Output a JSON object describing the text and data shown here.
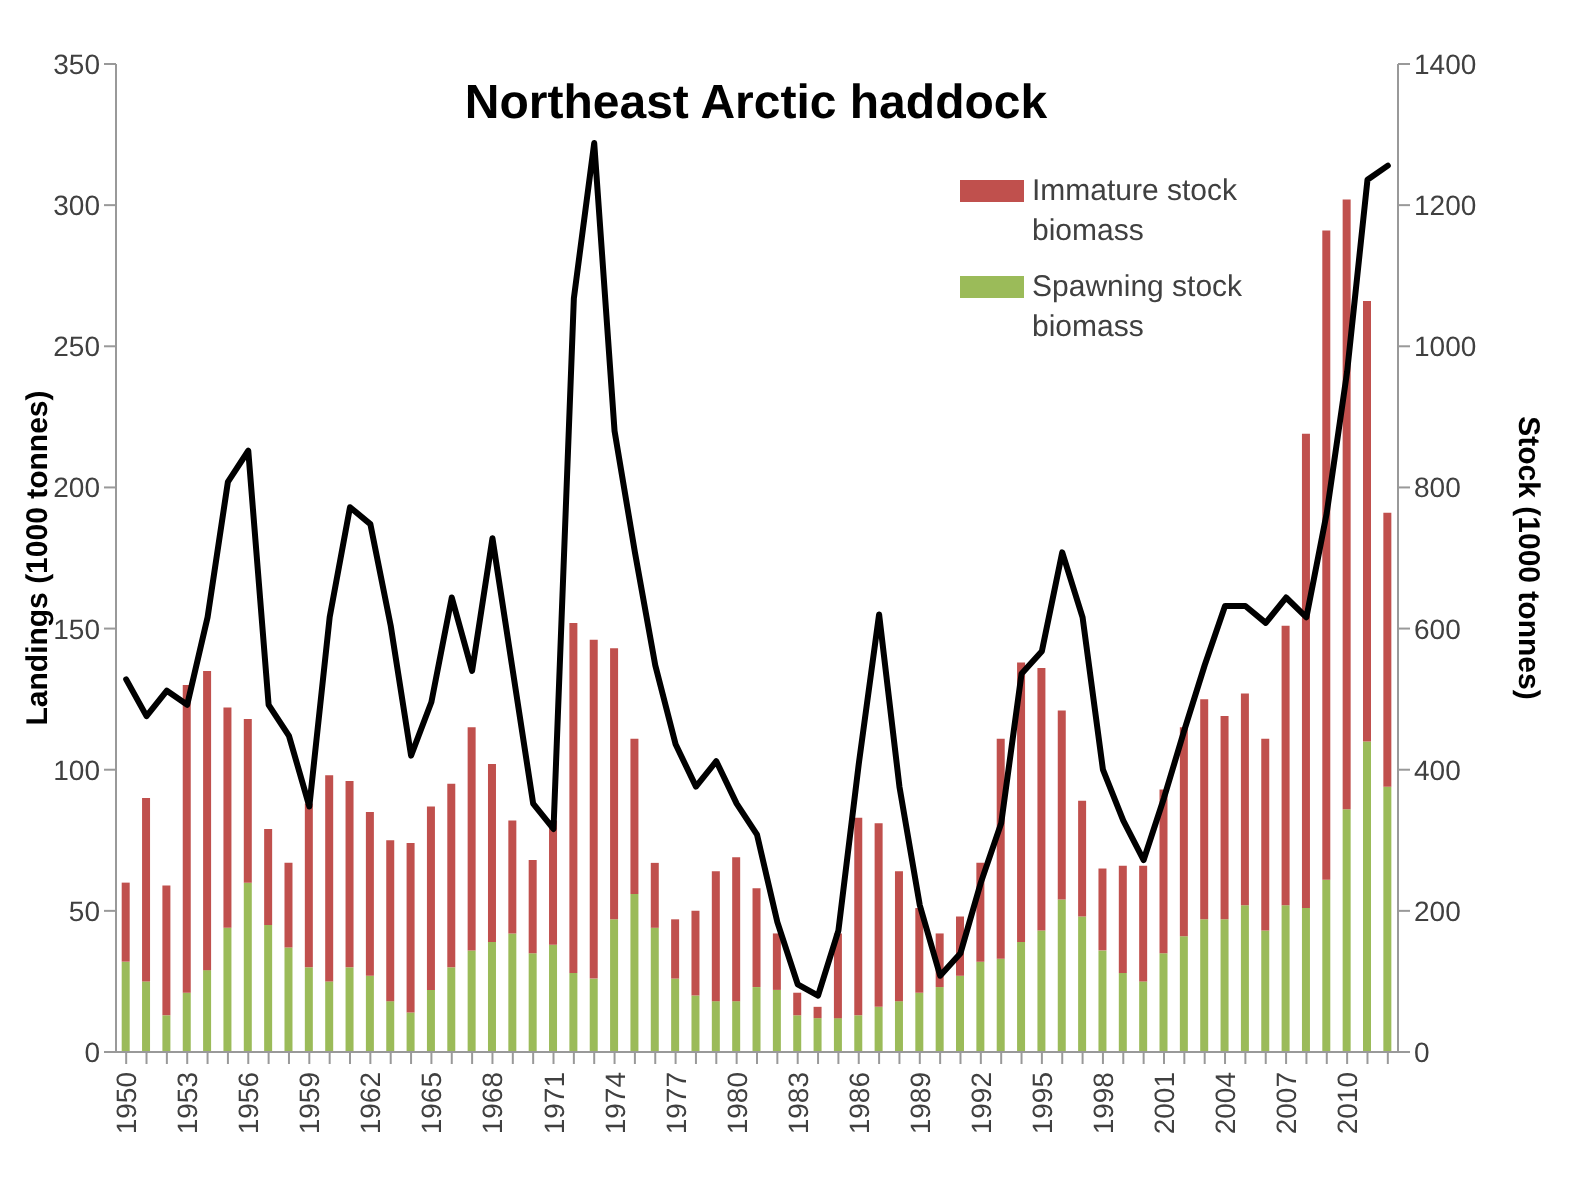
{
  "chart_data": {
    "type": "bar",
    "title": "Northeast Arctic haddock",
    "ylabel": "Landings (1000 tonnes)",
    "y2label": "Stock (1000 tonnes)",
    "categories": [
      "1950",
      null,
      null,
      "1953",
      null,
      null,
      "1956",
      null,
      null,
      "1959",
      null,
      null,
      "1962",
      null,
      null,
      "1965",
      null,
      null,
      "1968",
      null,
      null,
      "1971",
      null,
      null,
      "1974",
      null,
      null,
      "1977",
      null,
      null,
      "1980",
      null,
      null,
      "1983",
      null,
      null,
      "1986",
      null,
      null,
      "1989",
      null,
      null,
      "1992",
      null,
      null,
      "1995",
      null,
      null,
      "1998",
      null,
      null,
      "2001",
      null,
      null,
      "2004",
      null,
      null,
      "2007",
      null,
      null,
      "2010",
      null,
      null
    ],
    "stacked": true,
    "legend": "top right",
    "marker": "none",
    "line_style": "solid",
    "grid": false,
    "ylim": [
      0,
      350
    ],
    "yticks": [
      0,
      50,
      100,
      150,
      200,
      250,
      300,
      350
    ],
    "y2lim": [
      0,
      1400
    ],
    "y2ticks": [
      0,
      200,
      400,
      600,
      800,
      1000,
      1200,
      1400
    ],
    "series": [
      {
        "name": "Spawning stock biomass",
        "axis": "y2",
        "color": "#9bbb59",
        "values": [
          128,
          100,
          52,
          84,
          116,
          176,
          240,
          180,
          148,
          120,
          100,
          120,
          108,
          72,
          56,
          88,
          120,
          144,
          156,
          168,
          140,
          152,
          112,
          104,
          188,
          224,
          176,
          104,
          80,
          72,
          72,
          92,
          88,
          52,
          48,
          48,
          52,
          64,
          72,
          84,
          92,
          108,
          128,
          132,
          156,
          172,
          216,
          192,
          144,
          112,
          100,
          140,
          164,
          188,
          188,
          208,
          172,
          208,
          204,
          244,
          344,
          440,
          376
        ]
      },
      {
        "name": "Immature stock biomass",
        "axis": "y2",
        "color": "#c0504d",
        "values": [
          112,
          260,
          184,
          436,
          424,
          312,
          232,
          136,
          120,
          232,
          292,
          264,
          232,
          228,
          240,
          260,
          260,
          316,
          252,
          160,
          132,
          176,
          496,
          480,
          384,
          220,
          92,
          84,
          120,
          184,
          204,
          140,
          80,
          32,
          16,
          120,
          280,
          260,
          184,
          120,
          76,
          84,
          140,
          312,
          396,
          372,
          268,
          164,
          116,
          152,
          164,
          232,
          296,
          312,
          288,
          300,
          272,
          396,
          672,
          920,
          864,
          624,
          388
        ]
      },
      {
        "type": "line",
        "axis": "y",
        "color": "#000000",
        "values": [
          132,
          119,
          128,
          123,
          154,
          202,
          213,
          123,
          112,
          87,
          154,
          193,
          187,
          151,
          105,
          124,
          161,
          135,
          182,
          135,
          88,
          79,
          267,
          322,
          220,
          177,
          137,
          109,
          94,
          103,
          88,
          77,
          46,
          24,
          20,
          43,
          102,
          155,
          94,
          52,
          27,
          35,
          60,
          81,
          134,
          142,
          177,
          154,
          100,
          82,
          68,
          90,
          114,
          137,
          158,
          158,
          152,
          161,
          154,
          191,
          241,
          309,
          314
        ]
      }
    ]
  }
}
